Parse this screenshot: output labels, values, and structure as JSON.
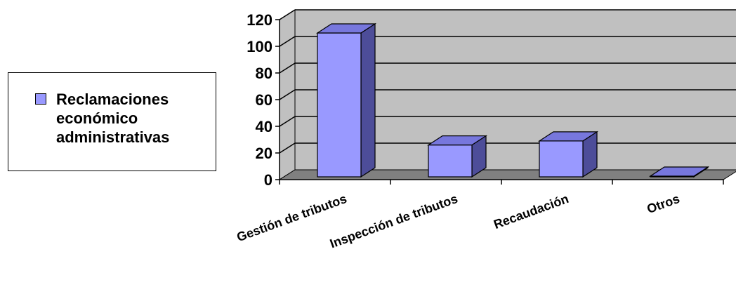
{
  "chart_data": {
    "type": "bar",
    "style": "3d-column",
    "categories": [
      "Gestión de tributos",
      "Inspección de tributos",
      "Recaudación",
      "Otros"
    ],
    "series": [
      {
        "name": "Reclamaciones económico administrativas",
        "values": [
          110,
          26,
          29,
          0
        ]
      }
    ],
    "y_ticks": [
      "0",
      "20",
      "40",
      "60",
      "80",
      "100",
      "120"
    ],
    "ylim": [
      0,
      120
    ],
    "grid": true,
    "legend_position": "left",
    "colors": {
      "bar_front": "#9999ff",
      "bar_side": "#4d4d99",
      "bar_top": "#7777dd",
      "wall": "#c0c0c0",
      "floor": "#808080"
    }
  },
  "legend": {
    "label": "Reclamaciones económico administrativas"
  }
}
